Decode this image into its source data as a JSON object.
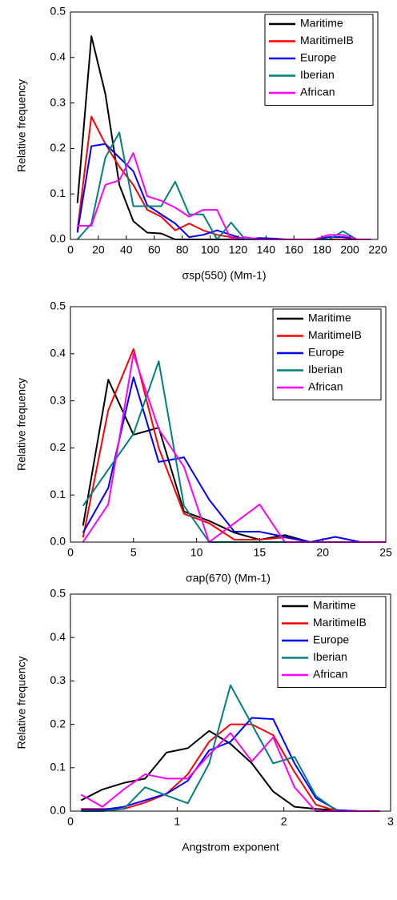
{
  "chart_data": [
    {
      "type": "line",
      "xlabel": "σsp(550) (Mm-1)",
      "ylabel": "Relative frequency",
      "x": [
        5,
        15,
        25,
        35,
        45,
        55,
        65,
        75,
        85,
        95,
        105,
        115,
        125,
        135,
        145,
        155,
        165,
        175,
        185,
        195,
        205,
        215
      ],
      "xlim": [
        0,
        220
      ],
      "xticks": [
        0,
        20,
        40,
        60,
        80,
        100,
        120,
        140,
        160,
        180,
        200,
        220
      ],
      "ylim": [
        0,
        0.5
      ],
      "yticks": [
        {
          "value": 0,
          "label": "0.0"
        },
        0.1,
        0.2,
        0.3,
        0.4,
        0.5
      ],
      "legend": "upper right",
      "series": [
        {
          "name": "Maritime",
          "color": "#000000",
          "values": [
            0.08,
            0.447,
            0.32,
            0.12,
            0.04,
            0.015,
            0.013,
            0,
            0,
            0,
            0,
            0,
            0,
            0,
            0,
            0,
            0,
            0,
            0,
            0,
            0,
            0
          ]
        },
        {
          "name": "MaritimeIB",
          "color": "#ff0000",
          "values": [
            0.02,
            0.27,
            0.21,
            0.16,
            0.12,
            0.065,
            0.05,
            0.02,
            0.035,
            0.02,
            0.01,
            0.005,
            0,
            0,
            0,
            0,
            0,
            0,
            0,
            0,
            0,
            0
          ]
        },
        {
          "name": "Europe",
          "color": "#0000ff",
          "values": [
            0.015,
            0.205,
            0.21,
            0.18,
            0.15,
            0.075,
            0.055,
            0.035,
            0.005,
            0.01,
            0.02,
            0.01,
            0,
            0.003,
            0.002,
            0,
            0,
            0,
            0.005,
            0.005,
            0,
            0
          ]
        },
        {
          "name": "Iberian",
          "color": "#008080",
          "values": [
            0,
            0.035,
            0.18,
            0.235,
            0.073,
            0.073,
            0.073,
            0.127,
            0.055,
            0.055,
            0,
            0.037,
            0,
            0,
            0,
            0,
            0,
            0,
            0,
            0.018,
            0,
            0
          ]
        },
        {
          "name": "African",
          "color": "#ff00ff",
          "values": [
            0.03,
            0.03,
            0.12,
            0.13,
            0.19,
            0.095,
            0.085,
            0.07,
            0.05,
            0.065,
            0.065,
            0,
            0.005,
            0,
            0,
            0,
            0,
            0,
            0.01,
            0.01,
            0,
            0
          ]
        }
      ]
    },
    {
      "type": "line",
      "xlabel": "σap(670) (Mm-1)",
      "ylabel": "Relative frequency",
      "x": [
        1,
        3,
        5,
        7,
        9,
        11,
        13,
        15,
        17,
        19,
        21,
        23,
        25
      ],
      "xlim": [
        0,
        25
      ],
      "xticks": [
        0,
        5,
        10,
        15,
        20,
        25
      ],
      "ylim": [
        0,
        0.5
      ],
      "yticks": [
        {
          "value": 0,
          "label": "0.0"
        },
        0.1,
        0.2,
        0.3,
        0.4,
        0.5
      ],
      "legend": "upper right",
      "series": [
        {
          "name": "Maritime",
          "color": "#000000",
          "values": [
            0.035,
            0.345,
            0.228,
            0.243,
            0.065,
            0.045,
            0.02,
            0.005,
            0.015,
            0,
            0,
            0,
            0
          ]
        },
        {
          "name": "MaritimeIB",
          "color": "#ff0000",
          "values": [
            0.01,
            0.28,
            0.41,
            0.2,
            0.06,
            0.04,
            0.005,
            0.005,
            0.01,
            0,
            0,
            0,
            0
          ]
        },
        {
          "name": "Europe",
          "color": "#0000ff",
          "values": [
            0.02,
            0.115,
            0.35,
            0.17,
            0.18,
            0.09,
            0.022,
            0.022,
            0.011,
            0,
            0.011,
            0,
            0
          ]
        },
        {
          "name": "Iberian",
          "color": "#008080",
          "values": [
            0.077,
            0.154,
            0.23,
            0.384,
            0.077,
            0,
            0,
            0,
            0,
            0,
            0,
            0,
            0
          ]
        },
        {
          "name": "African",
          "color": "#ff00ff",
          "values": [
            0,
            0.08,
            0.4,
            0.24,
            0.16,
            0,
            0.04,
            0.08,
            0,
            0,
            0,
            0,
            0
          ]
        }
      ]
    },
    {
      "type": "line",
      "xlabel": "Angstrom exponent",
      "ylabel": "Relative frequency",
      "x": [
        0.1,
        0.3,
        0.5,
        0.7,
        0.9,
        1.1,
        1.3,
        1.5,
        1.7,
        1.9,
        2.1,
        2.3,
        2.5,
        2.7,
        2.9
      ],
      "xlim": [
        0,
        3
      ],
      "xticks": [
        0,
        1,
        2,
        3
      ],
      "ylim": [
        0,
        0.5
      ],
      "yticks": [
        {
          "value": 0,
          "label": "0.0"
        },
        0.1,
        0.2,
        0.3,
        0.4,
        0.5
      ],
      "legend": "upper right",
      "series": [
        {
          "name": "Maritime",
          "color": "#000000",
          "values": [
            0.025,
            0.05,
            0.065,
            0.075,
            0.135,
            0.145,
            0.185,
            0.155,
            0.11,
            0.045,
            0.01,
            0.005,
            0.002,
            0,
            0
          ]
        },
        {
          "name": "MaritimeIB",
          "color": "#ff0000",
          "values": [
            0.005,
            0.005,
            0.005,
            0.02,
            0.04,
            0.085,
            0.16,
            0.2,
            0.2,
            0.175,
            0.09,
            0.015,
            0,
            0,
            0
          ]
        },
        {
          "name": "Europe",
          "color": "#0000ff",
          "values": [
            0.003,
            0.003,
            0.01,
            0.025,
            0.04,
            0.07,
            0.14,
            0.16,
            0.215,
            0.212,
            0.11,
            0.03,
            0.002,
            0,
            0
          ]
        },
        {
          "name": "Iberian",
          "color": "#008080",
          "values": [
            0,
            0,
            0.005,
            0.055,
            0.036,
            0.018,
            0.11,
            0.29,
            0.2,
            0.11,
            0.125,
            0.035,
            0,
            0,
            0
          ]
        },
        {
          "name": "African",
          "color": "#ff00ff",
          "values": [
            0.038,
            0.01,
            0.05,
            0.085,
            0.075,
            0.075,
            0.13,
            0.18,
            0.115,
            0.17,
            0.055,
            0,
            0,
            0,
            0
          ]
        }
      ]
    }
  ]
}
